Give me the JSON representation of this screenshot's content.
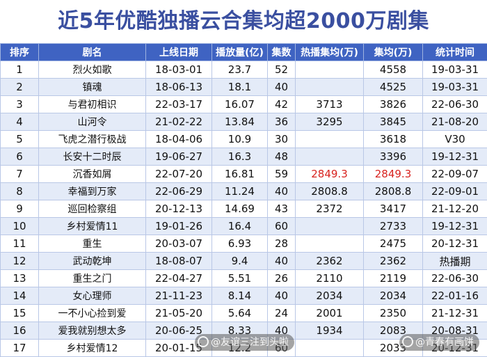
{
  "title": "近5年优酷独播云合集均超2000万剧集",
  "columns": [
    "排序",
    "剧名",
    "上线日期",
    "播放量(亿)",
    "集数",
    "热播集均(万)",
    "集均(万)",
    "统计时间"
  ],
  "rows": [
    {
      "rank": "1",
      "name": "烈火如歌",
      "date": "18-03-01",
      "views": "23.7",
      "eps": "52",
      "hot_avg": "",
      "avg": "4558",
      "stat_time": "19-03-31"
    },
    {
      "rank": "2",
      "name": "镇魂",
      "date": "18-06-13",
      "views": "18.1",
      "eps": "40",
      "hot_avg": "",
      "avg": "4525",
      "stat_time": "19-03-31"
    },
    {
      "rank": "3",
      "name": "与君初相识",
      "date": "22-03-17",
      "views": "16.07",
      "eps": "42",
      "hot_avg": "3713",
      "avg": "3826",
      "stat_time": "22-06-30"
    },
    {
      "rank": "4",
      "name": "山河令",
      "date": "21-02-22",
      "views": "13.84",
      "eps": "36",
      "hot_avg": "3295",
      "avg": "3845",
      "stat_time": "21-08-20"
    },
    {
      "rank": "5",
      "name": "飞虎之潜行极战",
      "date": "18-04-06",
      "views": "10.9",
      "eps": "30",
      "hot_avg": "",
      "avg": "3618",
      "stat_time": "V30"
    },
    {
      "rank": "6",
      "name": "长安十二时辰",
      "date": "19-06-27",
      "views": "16.3",
      "eps": "48",
      "hot_avg": "",
      "avg": "3396",
      "stat_time": "19-12-31"
    },
    {
      "rank": "7",
      "name": "沉香如屑",
      "date": "22-07-20",
      "views": "16.81",
      "eps": "59",
      "hot_avg": "2849.3",
      "avg": "2849.3",
      "stat_time": "22-09-07"
    },
    {
      "rank": "8",
      "name": "幸福到万家",
      "date": "22-06-29",
      "views": "11.24",
      "eps": "40",
      "hot_avg": "2808.8",
      "avg": "2808.8",
      "stat_time": "22-09-01"
    },
    {
      "rank": "9",
      "name": "巡回检察组",
      "date": "20-12-13",
      "views": "14.69",
      "eps": "43",
      "hot_avg": "2372",
      "avg": "3417",
      "stat_time": "21-12-20"
    },
    {
      "rank": "10",
      "name": "乡村爱情11",
      "date": "19-01-26",
      "views": "16.4",
      "eps": "60",
      "hot_avg": "",
      "avg": "2733",
      "stat_time": "19-12-31"
    },
    {
      "rank": "11",
      "name": "重生",
      "date": "20-03-07",
      "views": "6.93",
      "eps": "28",
      "hot_avg": "",
      "avg": "2475",
      "stat_time": "20-12-31"
    },
    {
      "rank": "12",
      "name": "武动乾坤",
      "date": "18-08-07",
      "views": "9.4",
      "eps": "40",
      "hot_avg": "2362",
      "avg": "2362",
      "stat_time": "热播期"
    },
    {
      "rank": "13",
      "name": "重生之门",
      "date": "22-04-27",
      "views": "5.51",
      "eps": "26",
      "hot_avg": "2110",
      "avg": "2119",
      "stat_time": "22-06-30"
    },
    {
      "rank": "14",
      "name": "女心理师",
      "date": "21-11-23",
      "views": "8.14",
      "eps": "40",
      "hot_avg": "2034",
      "avg": "2034",
      "stat_time": "22-01-16"
    },
    {
      "rank": "15",
      "name": "一不小心捡到爱",
      "date": "21-05-20",
      "views": "5.64",
      "eps": "24",
      "hot_avg": "2001",
      "avg": "2350",
      "stat_time": "21-12-31"
    },
    {
      "rank": "16",
      "name": "爱我就别想太多",
      "date": "20-06-25",
      "views": "8.33",
      "eps": "40",
      "hot_avg": "1934",
      "avg": "2083",
      "stat_time": "20-08-31"
    },
    {
      "rank": "17",
      "name": "乡村爱情12",
      "date": "20-01-15",
      "views": "12.2",
      "eps": "60",
      "hot_avg": "",
      "avg": "2033",
      "stat_time": "20-12-31"
    }
  ],
  "highlight_color": "#d8231f",
  "watermarks": [
    "@友谊三注到头啦",
    "@青春有画饼"
  ]
}
